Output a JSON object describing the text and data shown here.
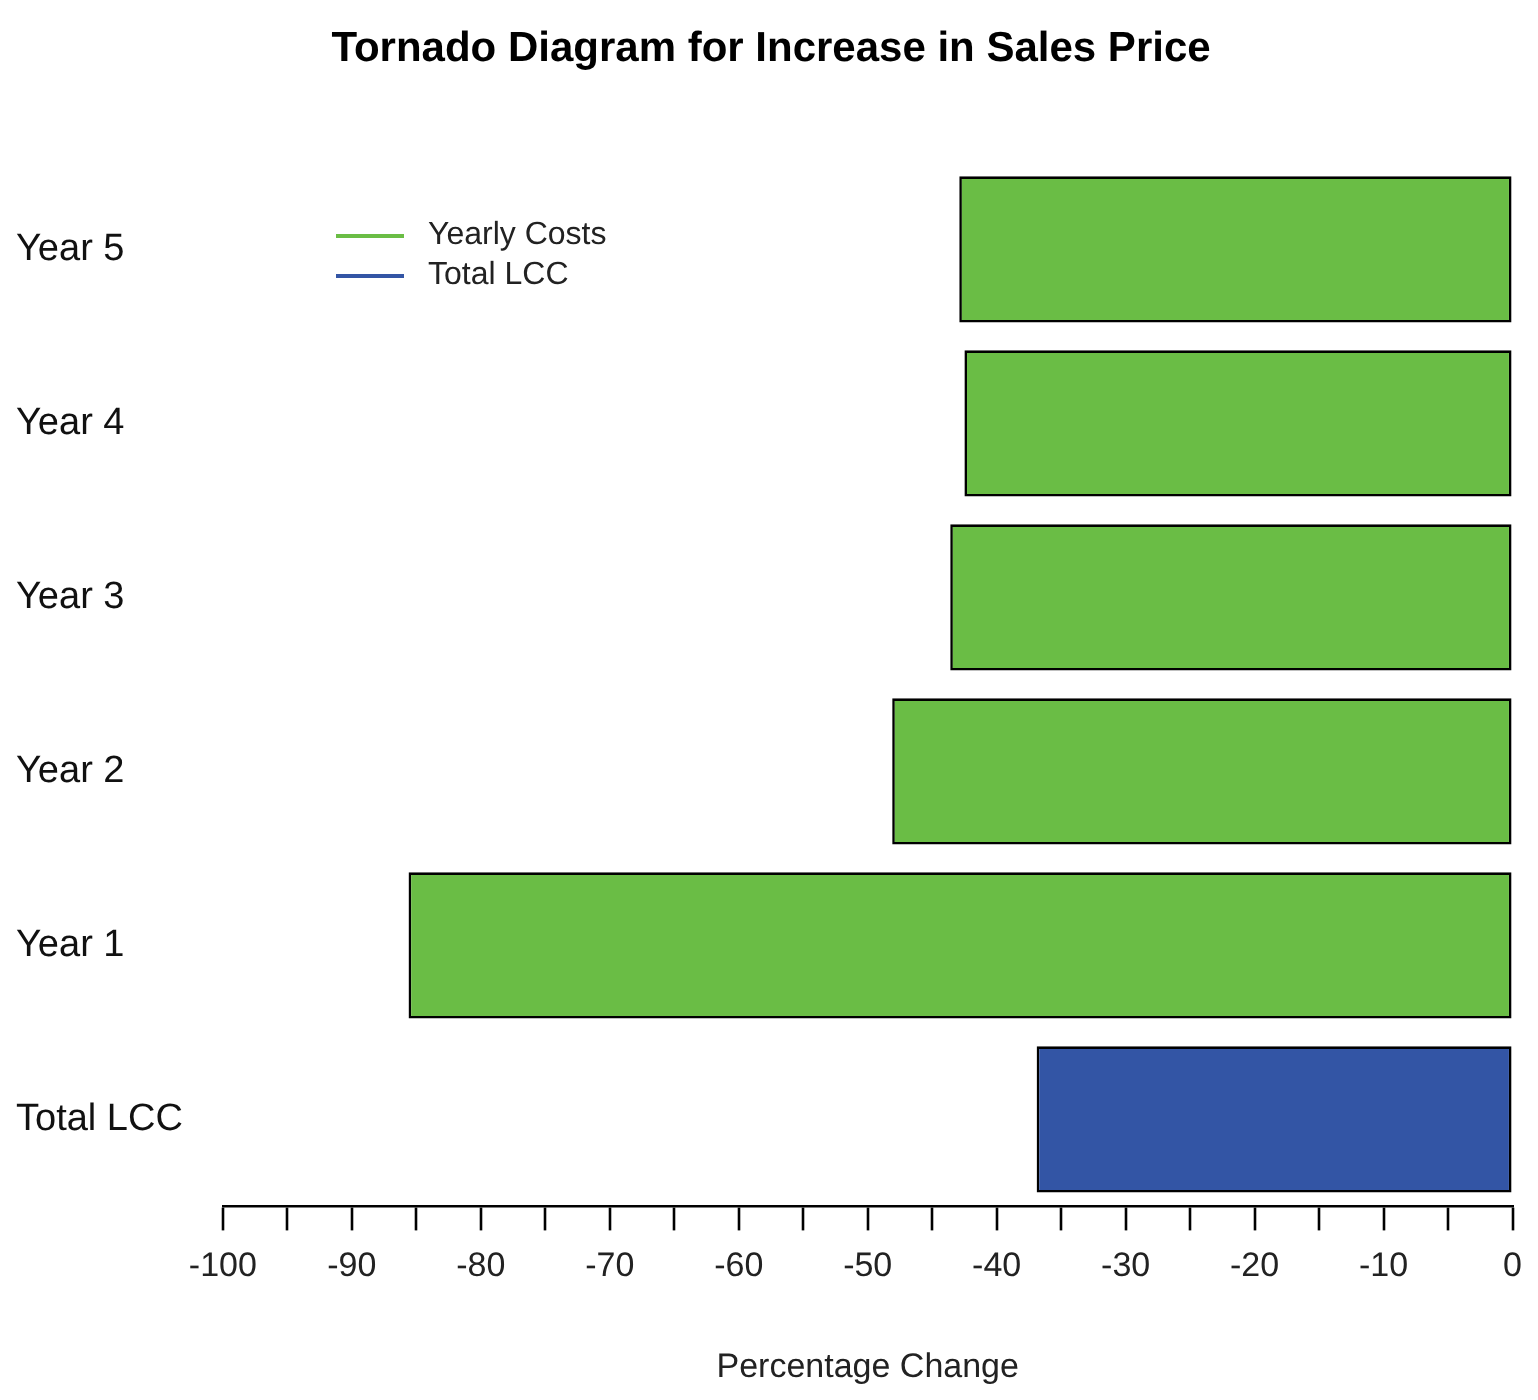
{
  "chart_data": {
    "type": "bar",
    "orientation": "horizontal",
    "title": "Tornado Diagram for Increase in Sales Price",
    "xlabel": "Percentage Change",
    "categories": [
      "Year 5",
      "Year 4",
      "Year 3",
      "Year 2",
      "Year 1",
      "Total LCC"
    ],
    "series": [
      {
        "name": "Yearly Costs",
        "color": "#6abd45",
        "values": [
          -42.9,
          -42.5,
          -43.6,
          -48.1,
          -85.6,
          null
        ]
      },
      {
        "name": "Total LCC",
        "color": "#3355a5",
        "values": [
          null,
          null,
          null,
          null,
          null,
          -36.9
        ]
      }
    ],
    "xlim": [
      -100,
      0
    ],
    "xticks": [
      -100,
      {
        "value": -95,
        "label": null
      },
      -90,
      {
        "value": -85,
        "label": null
      },
      -80,
      {
        "value": -75,
        "label": null
      },
      -70,
      {
        "value": -65,
        "label": null
      },
      -60,
      {
        "value": -55,
        "label": null
      },
      -50,
      {
        "value": -45,
        "label": null
      },
      -40,
      {
        "value": -35,
        "label": null
      },
      -30,
      {
        "value": -25,
        "label": null
      },
      -20,
      {
        "value": -15,
        "label": null
      },
      -10,
      {
        "value": -5,
        "label": null
      },
      0
    ],
    "legend": "top left",
    "grid": false
  }
}
